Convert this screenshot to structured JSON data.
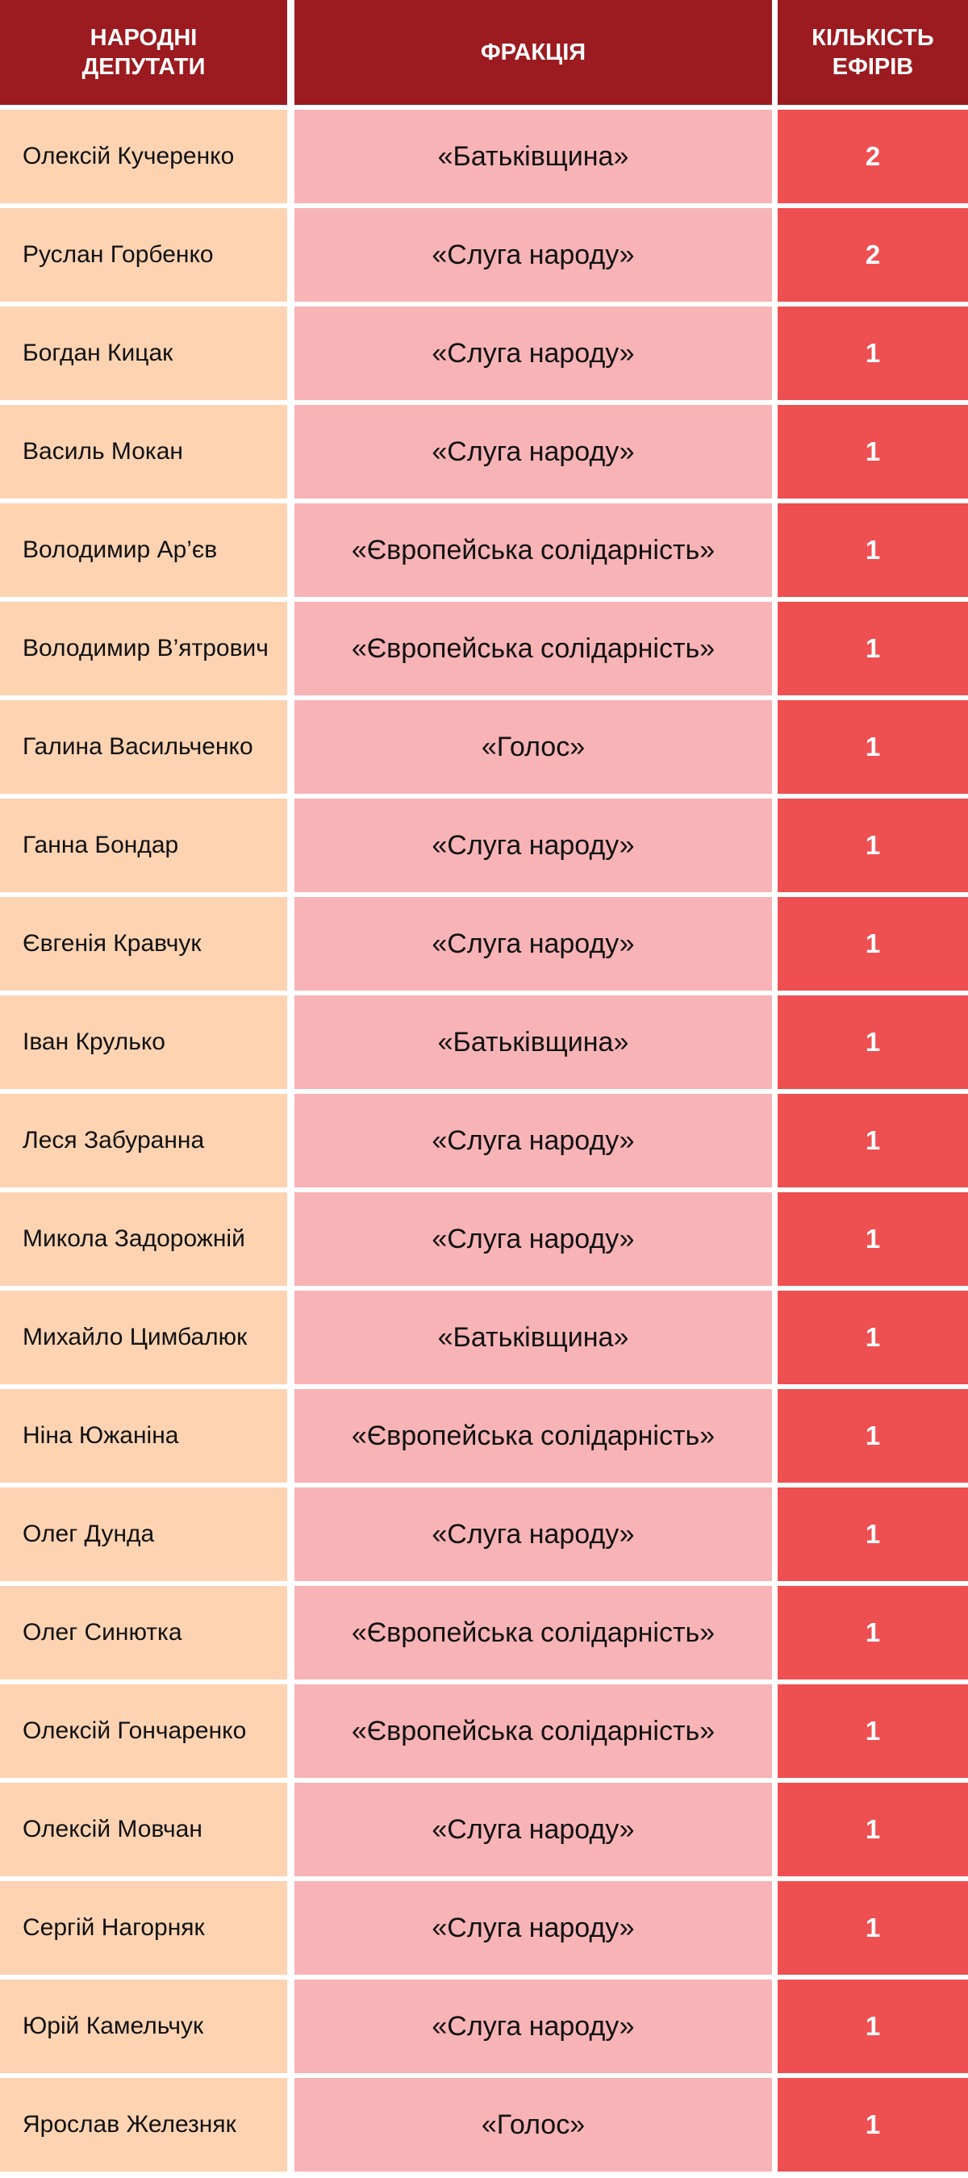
{
  "table": {
    "header": [
      [
        "НАРОДНІ",
        "ДЕПУТАТИ"
      ],
      [
        "ФРАКЦІЯ"
      ],
      [
        "КІЛЬКІСТЬ",
        "ЕФІРІВ"
      ]
    ],
    "rows": [
      [
        "Олексій Кучеренко",
        "«Батьківщина»",
        2
      ],
      [
        "Руслан Горбенко",
        "«Слуга народу»",
        2
      ],
      [
        "Богдан Кицак",
        "«Слуга народу»",
        1
      ],
      [
        "Василь Мокан",
        "«Слуга народу»",
        1
      ],
      [
        "Володимир Ар’єв",
        "«Європейська солідарність»",
        1
      ],
      [
        "Володимир В’ятрович",
        "«Європейська солідарність»",
        1
      ],
      [
        "Галина Васильченко",
        "«Голос»",
        1
      ],
      [
        "Ганна Бондар",
        "«Слуга народу»",
        1
      ],
      [
        "Євгенія Кравчук",
        "«Слуга народу»",
        1
      ],
      [
        "Іван Крулько",
        "«Батьківщина»",
        1
      ],
      [
        "Леся Забуранна",
        "«Слуга народу»",
        1
      ],
      [
        "Микола Задорожній",
        "«Слуга народу»",
        1
      ],
      [
        "Михайло Цимбалюк",
        "«Батьківщина»",
        1
      ],
      [
        "Ніна Южаніна",
        "«Європейська солідарність»",
        1
      ],
      [
        "Олег Дунда",
        "«Слуга народу»",
        1
      ],
      [
        "Олег Синютка",
        "«Європейська солідарність»",
        1
      ],
      [
        "Олексій Гончаренко",
        "«Європейська солідарність»",
        1
      ],
      [
        "Олексій Мовчан",
        "«Слуга народу»",
        1
      ],
      [
        "Сергій Нагорняк",
        "«Слуга народу»",
        1
      ],
      [
        "Юрій Камельчук",
        "«Слуга народу»",
        1
      ],
      [
        "Ярослав Железняк",
        "«Голос»",
        1
      ]
    ]
  }
}
